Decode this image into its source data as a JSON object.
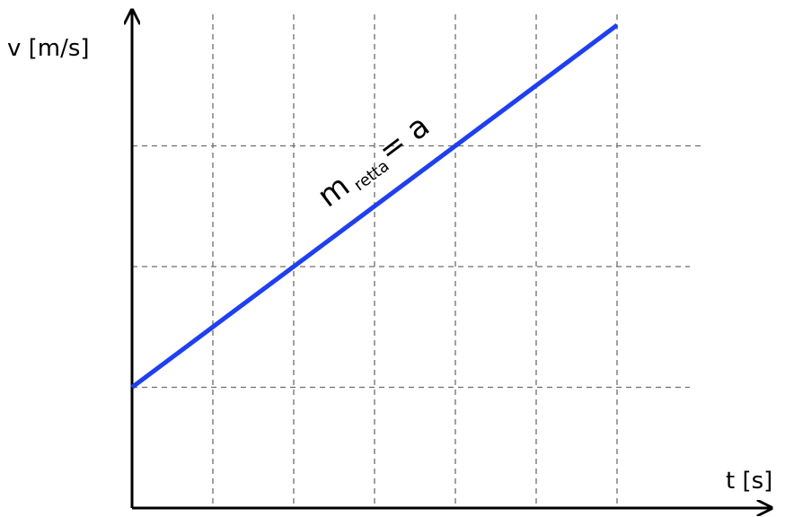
{
  "chart_data": {
    "type": "line",
    "title": "",
    "xlabel": "t [s]",
    "ylabel": "v [m/s]",
    "grid": true,
    "x_ticks": [
      0,
      1,
      2,
      3,
      4,
      5,
      6
    ],
    "y_ticks": [
      0,
      1,
      2,
      3
    ],
    "xlim": [
      0,
      7
    ],
    "ylim": [
      0,
      4.2
    ],
    "series": [
      {
        "color": "#1f3ff0",
        "points": [
          [
            0,
            1.0
          ],
          [
            6,
            4.0
          ]
        ]
      }
    ],
    "annotation": {
      "main": "m",
      "subscript": "retta",
      "suffix": "= a"
    },
    "colors": {
      "axis": "#000000",
      "grid": "#6e6e6e",
      "line": "#1f3ff0"
    }
  }
}
